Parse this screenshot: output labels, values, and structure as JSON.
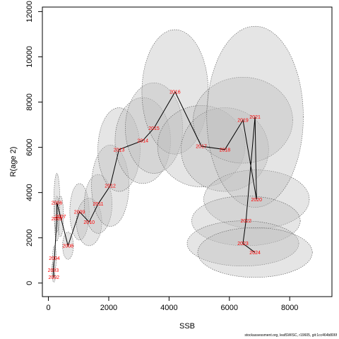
{
  "chart_data": {
    "type": "scatter",
    "title": "",
    "xlabel": "SSB",
    "ylabel": "R(age 2)",
    "xlim": [
      -200,
      9400
    ],
    "ylim": [
      -600,
      12200
    ],
    "x_ticks": [
      0,
      2000,
      4000,
      6000,
      8000
    ],
    "y_ticks": [
      0,
      2000,
      4000,
      6000,
      8000,
      10000,
      12000
    ],
    "grid": false,
    "legend": "none",
    "colors": {
      "line": "#000000",
      "label": "#ff0000",
      "ellipse_fill": "#bebebe",
      "ellipse_stroke": "#555555"
    },
    "points": [
      {
        "year": "2002",
        "ssb": 180,
        "rec": 260,
        "ell": {
          "rx": 40,
          "ry": 220
        }
      },
      {
        "year": "2003",
        "ssb": 160,
        "rec": 570,
        "ell": {
          "rx": 50,
          "ry": 350
        }
      },
      {
        "year": "2004",
        "ssb": 200,
        "rec": 1100,
        "ell": {
          "rx": 60,
          "ry": 550
        }
      },
      {
        "year": "2005",
        "ssb": 280,
        "rec": 2850,
        "ell": {
          "rx": 80,
          "ry": 1000
        }
      },
      {
        "year": "2006",
        "ssb": 280,
        "rec": 3550,
        "ell": {
          "rx": 100,
          "ry": 1300
        }
      },
      {
        "year": "2007",
        "ssb": 400,
        "rec": 2950,
        "ell": {
          "rx": 100,
          "ry": 900
        }
      },
      {
        "year": "2008",
        "ssb": 650,
        "rec": 1650,
        "ell": {
          "rx": 180,
          "ry": 600
        }
      },
      {
        "year": "2009",
        "ssb": 1030,
        "rec": 3150,
        "ell": {
          "rx": 320,
          "ry": 1250
        }
      },
      {
        "year": "2010",
        "ssb": 1350,
        "rec": 2700,
        "ell": {
          "rx": 420,
          "ry": 1050
        }
      },
      {
        "year": "2011",
        "ssb": 1650,
        "rec": 3500,
        "ell": {
          "rx": 460,
          "ry": 1300
        }
      },
      {
        "year": "2012",
        "ssb": 2050,
        "rec": 4300,
        "ell": {
          "rx": 620,
          "ry": 1800
        }
      },
      {
        "year": "2013",
        "ssb": 2340,
        "rec": 5900,
        "ell": {
          "rx": 700,
          "ry": 1850
        }
      },
      {
        "year": "2014",
        "ssb": 3130,
        "rec": 6300,
        "ell": {
          "rx": 920,
          "ry": 1900
        }
      },
      {
        "year": "2015",
        "ssb": 3500,
        "rec": 6850,
        "ell": {
          "rx": 950,
          "ry": 2000
        }
      },
      {
        "year": "2016",
        "ssb": 4200,
        "rec": 8450,
        "ell": {
          "rx": 1100,
          "ry": 2750
        }
      },
      {
        "year": "2017",
        "ssb": 5070,
        "rec": 6050,
        "ell": {
          "rx": 1450,
          "ry": 1800
        }
      },
      {
        "year": "2018",
        "ssb": 5850,
        "rec": 5900,
        "ell": {
          "rx": 1450,
          "ry": 1850
        }
      },
      {
        "year": "2019",
        "ssb": 6450,
        "rec": 7200,
        "ell": {
          "rx": 1650,
          "ry": 1900
        }
      },
      {
        "year": "2020",
        "ssb": 6900,
        "rec": 3700,
        "ell": {
          "rx": 1750,
          "ry": 1300
        }
      },
      {
        "year": "2021",
        "ssb": 6850,
        "rec": 7350,
        "ell": {
          "rx": 1600,
          "ry": 4000
        }
      },
      {
        "year": "2022",
        "ssb": 6550,
        "rec": 2750,
        "ell": {
          "rx": 1800,
          "ry": 1100
        }
      },
      {
        "year": "2023",
        "ssb": 6450,
        "rec": 1750,
        "ell": {
          "rx": 1850,
          "ry": 1000
        }
      },
      {
        "year": "2024",
        "ssb": 6850,
        "rec": 1350,
        "ell": {
          "rx": 1900,
          "ry": 1100
        }
      }
    ]
  },
  "footer": {
    "note": "stockassessment.org, leafSWISC, r19605, git:1cc464b806f"
  }
}
